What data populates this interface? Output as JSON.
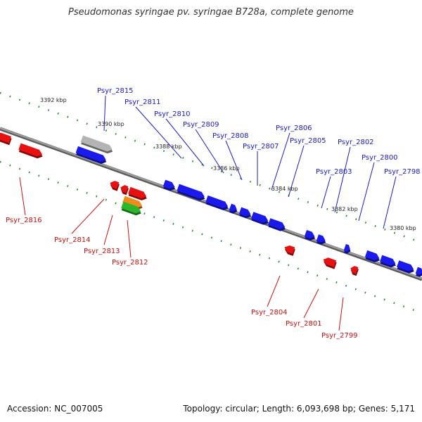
{
  "title": "Pseudomonas syringae pv. syringae B728a, complete genome",
  "footer": {
    "accession": "Accession: NC_007005",
    "summary": "Topology: circular; Length: 6,093,698 bp; Genes: 5,171"
  },
  "colors": {
    "forward_gene": "#1a1aee",
    "reverse_gene": "#e81010",
    "gray_gene": "#b4b4b4",
    "orange_gene": "#f08c1e",
    "green_gene": "#2ab82a",
    "backbone": "#8c8c8c",
    "forward_label": "#1a1ad0",
    "reverse_label": "#cc1010",
    "scale_tick": "#1a8a1a"
  },
  "scale_labels": [
    {
      "label": "3392 kbp",
      "kbp": 3392
    },
    {
      "label": "3390 kbp",
      "kbp": 3390
    },
    {
      "label": "3388 kbp",
      "kbp": 3388
    },
    {
      "label": "3386 kbp",
      "kbp": 3386
    },
    {
      "label": "3384 kbp",
      "kbp": 3384
    },
    {
      "label": "3382 kbp",
      "kbp": 3382
    },
    {
      "label": "3380 kbp",
      "kbp": 3380
    }
  ],
  "forward_labels": [
    "Psyr_2815",
    "Psyr_2811",
    "Psyr_2810",
    "Psyr_2809",
    "Psyr_2808",
    "Psyr_2807",
    "Psyr_2806",
    "Psyr_2805",
    "Psyr_2803",
    "Psyr_2802",
    "Psyr_2800",
    "Psyr_2798"
  ],
  "reverse_labels": [
    "Psyr_2816",
    "Psyr_2814",
    "Psyr_2813",
    "Psyr_2812",
    "Psyr_2804",
    "Psyr_2801",
    "Psyr_2799"
  ]
}
